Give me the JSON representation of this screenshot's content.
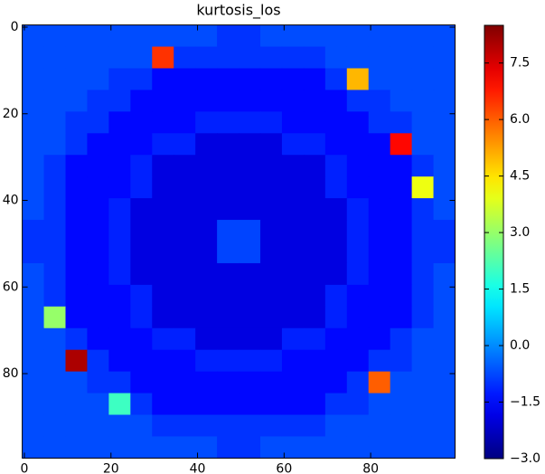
{
  "chart_data": {
    "type": "heatmap",
    "title": "kurtosis_los",
    "colormap": "jet",
    "xlim": [
      -0.5,
      99.5
    ],
    "ylim": [
      -0.5,
      99.5
    ],
    "y_inverted": true,
    "xticks": [
      0,
      20,
      40,
      60,
      80
    ],
    "yticks": [
      0,
      20,
      40,
      60,
      80
    ],
    "zlim": [
      -3.0,
      8.5
    ],
    "zticks": [
      {
        "value": -3.0,
        "label": "−3.0"
      },
      {
        "value": -1.5,
        "label": "−1.5"
      },
      {
        "value": 0.0,
        "label": "0.0"
      },
      {
        "value": 1.5,
        "label": "1.5"
      },
      {
        "value": 3.0,
        "label": "3.0"
      },
      {
        "value": 4.5,
        "label": "4.5"
      },
      {
        "value": 6.0,
        "label": "6.0"
      },
      {
        "value": 7.5,
        "label": "7.5"
      }
    ],
    "z": [
      [
        -0.7,
        -0.7,
        -0.7,
        -0.7,
        -0.7,
        -0.7,
        -0.7,
        -0.7,
        -0.7,
        -1.0,
        -1.0,
        -0.7,
        -0.7,
        -0.7,
        -0.7,
        -0.7,
        -0.7,
        -0.7,
        -0.7,
        -0.7
      ],
      [
        -0.7,
        -0.7,
        -0.7,
        -0.7,
        -0.7,
        -0.7,
        6.5,
        -1.0,
        -1.0,
        -1.0,
        -1.0,
        -1.0,
        -1.0,
        -1.0,
        -0.7,
        -0.7,
        -0.7,
        -0.7,
        -0.7,
        -0.7
      ],
      [
        -0.7,
        -0.7,
        -0.7,
        -0.7,
        -1.0,
        -1.0,
        -1.5,
        -1.5,
        -1.5,
        -1.5,
        -1.5,
        -1.5,
        -1.5,
        -1.5,
        -1.0,
        5.0,
        -0.7,
        -0.7,
        -0.7,
        -0.7
      ],
      [
        -0.7,
        -0.7,
        -0.7,
        -1.0,
        -1.0,
        -1.5,
        -1.5,
        -1.5,
        -1.5,
        -1.5,
        -1.5,
        -1.5,
        -1.5,
        -1.5,
        -1.5,
        -1.0,
        -1.0,
        -0.7,
        -0.7,
        -0.7
      ],
      [
        -0.7,
        -0.7,
        -1.0,
        -1.0,
        -1.5,
        -1.5,
        -1.5,
        -1.5,
        -1.2,
        -1.2,
        -1.2,
        -1.2,
        -1.5,
        -1.5,
        -1.5,
        -1.5,
        -1.0,
        -1.0,
        -0.7,
        -0.7
      ],
      [
        -0.7,
        -0.7,
        -1.0,
        -1.5,
        -1.5,
        -1.5,
        -1.2,
        -1.2,
        -1.9,
        -1.9,
        -1.9,
        -1.9,
        -1.2,
        -1.2,
        -1.5,
        -1.5,
        -1.5,
        7.0,
        -0.7,
        -0.7
      ],
      [
        -0.7,
        -1.0,
        -1.5,
        -1.5,
        -1.5,
        -1.2,
        -1.9,
        -1.9,
        -1.9,
        -1.9,
        -1.9,
        -1.9,
        -1.9,
        -1.9,
        -1.2,
        -1.5,
        -1.5,
        -1.5,
        -1.0,
        -0.7
      ],
      [
        -0.7,
        -1.0,
        -1.5,
        -1.5,
        -1.5,
        -1.2,
        -1.9,
        -1.9,
        -1.9,
        -1.9,
        -1.9,
        -1.9,
        -1.9,
        -1.9,
        -1.2,
        -1.5,
        -1.5,
        -1.5,
        4.0,
        -0.7
      ],
      [
        -0.7,
        -1.0,
        -1.5,
        -1.5,
        -1.2,
        -1.9,
        -1.9,
        -1.9,
        -1.9,
        -1.9,
        -1.9,
        -1.9,
        -1.9,
        -1.9,
        -1.9,
        -1.2,
        -1.5,
        -1.5,
        -1.0,
        -0.7
      ],
      [
        -1.0,
        -1.0,
        -1.5,
        -1.5,
        -1.2,
        -1.9,
        -1.9,
        -1.9,
        -1.9,
        -0.8,
        -0.8,
        -1.9,
        -1.9,
        -1.9,
        -1.9,
        -1.2,
        -1.5,
        -1.5,
        -1.0,
        -1.0
      ],
      [
        -1.0,
        -1.0,
        -1.5,
        -1.5,
        -1.2,
        -1.9,
        -1.9,
        -1.9,
        -1.9,
        -0.8,
        -0.8,
        -1.9,
        -1.9,
        -1.9,
        -1.9,
        -1.2,
        -1.5,
        -1.5,
        -1.0,
        -1.0
      ],
      [
        -0.7,
        -1.0,
        -1.5,
        -1.5,
        -1.2,
        -1.9,
        -1.9,
        -1.9,
        -1.9,
        -1.9,
        -1.9,
        -1.9,
        -1.9,
        -1.9,
        -1.9,
        -1.2,
        -1.5,
        -1.5,
        -1.0,
        -0.7
      ],
      [
        -0.7,
        -1.0,
        -1.5,
        -1.5,
        -1.5,
        -1.2,
        -1.9,
        -1.9,
        -1.9,
        -1.9,
        -1.9,
        -1.9,
        -1.9,
        -1.9,
        -1.2,
        -1.5,
        -1.5,
        -1.5,
        -1.0,
        -0.7
      ],
      [
        -0.7,
        3.0,
        -1.5,
        -1.5,
        -1.5,
        -1.2,
        -1.9,
        -1.9,
        -1.9,
        -1.9,
        -1.9,
        -1.9,
        -1.9,
        -1.9,
        -1.2,
        -1.5,
        -1.5,
        -1.5,
        -1.0,
        -0.7
      ],
      [
        -0.7,
        -0.7,
        -1.0,
        -1.5,
        -1.5,
        -1.5,
        -1.2,
        -1.2,
        -1.9,
        -1.9,
        -1.9,
        -1.9,
        -1.2,
        -1.2,
        -1.5,
        -1.5,
        -1.5,
        -1.0,
        -0.7,
        -0.7
      ],
      [
        -0.7,
        -0.7,
        8.0,
        -1.0,
        -1.5,
        -1.5,
        -1.5,
        -1.5,
        -1.2,
        -1.2,
        -1.2,
        -1.2,
        -1.5,
        -1.5,
        -1.5,
        -1.5,
        -1.0,
        -1.0,
        -0.7,
        -0.7
      ],
      [
        -0.7,
        -0.7,
        -0.7,
        -1.0,
        -1.0,
        -1.5,
        -1.5,
        -1.5,
        -1.5,
        -1.5,
        -1.5,
        -1.5,
        -1.5,
        -1.5,
        -1.5,
        -1.0,
        6.0,
        -0.7,
        -0.7,
        -0.7
      ],
      [
        -0.7,
        -0.7,
        -0.7,
        -0.7,
        2.0,
        -1.0,
        -1.5,
        -1.5,
        -1.5,
        -1.5,
        -1.5,
        -1.5,
        -1.5,
        -1.5,
        -1.0,
        -1.0,
        -0.7,
        -0.7,
        -0.7,
        -0.7
      ],
      [
        -0.7,
        -0.7,
        -0.7,
        -0.7,
        -0.7,
        -0.7,
        -1.0,
        -1.0,
        -1.0,
        -1.0,
        -1.0,
        -1.0,
        -1.0,
        -1.0,
        -0.7,
        -0.7,
        -0.7,
        -0.7,
        -0.7,
        -0.7
      ],
      [
        -0.7,
        -0.7,
        -0.7,
        -0.7,
        -0.7,
        -0.7,
        -0.7,
        -0.7,
        -0.7,
        -1.0,
        -1.0,
        -0.7,
        -0.7,
        -0.7,
        -0.7,
        -0.7,
        -0.7,
        -0.7,
        -0.7,
        -0.7
      ]
    ]
  }
}
